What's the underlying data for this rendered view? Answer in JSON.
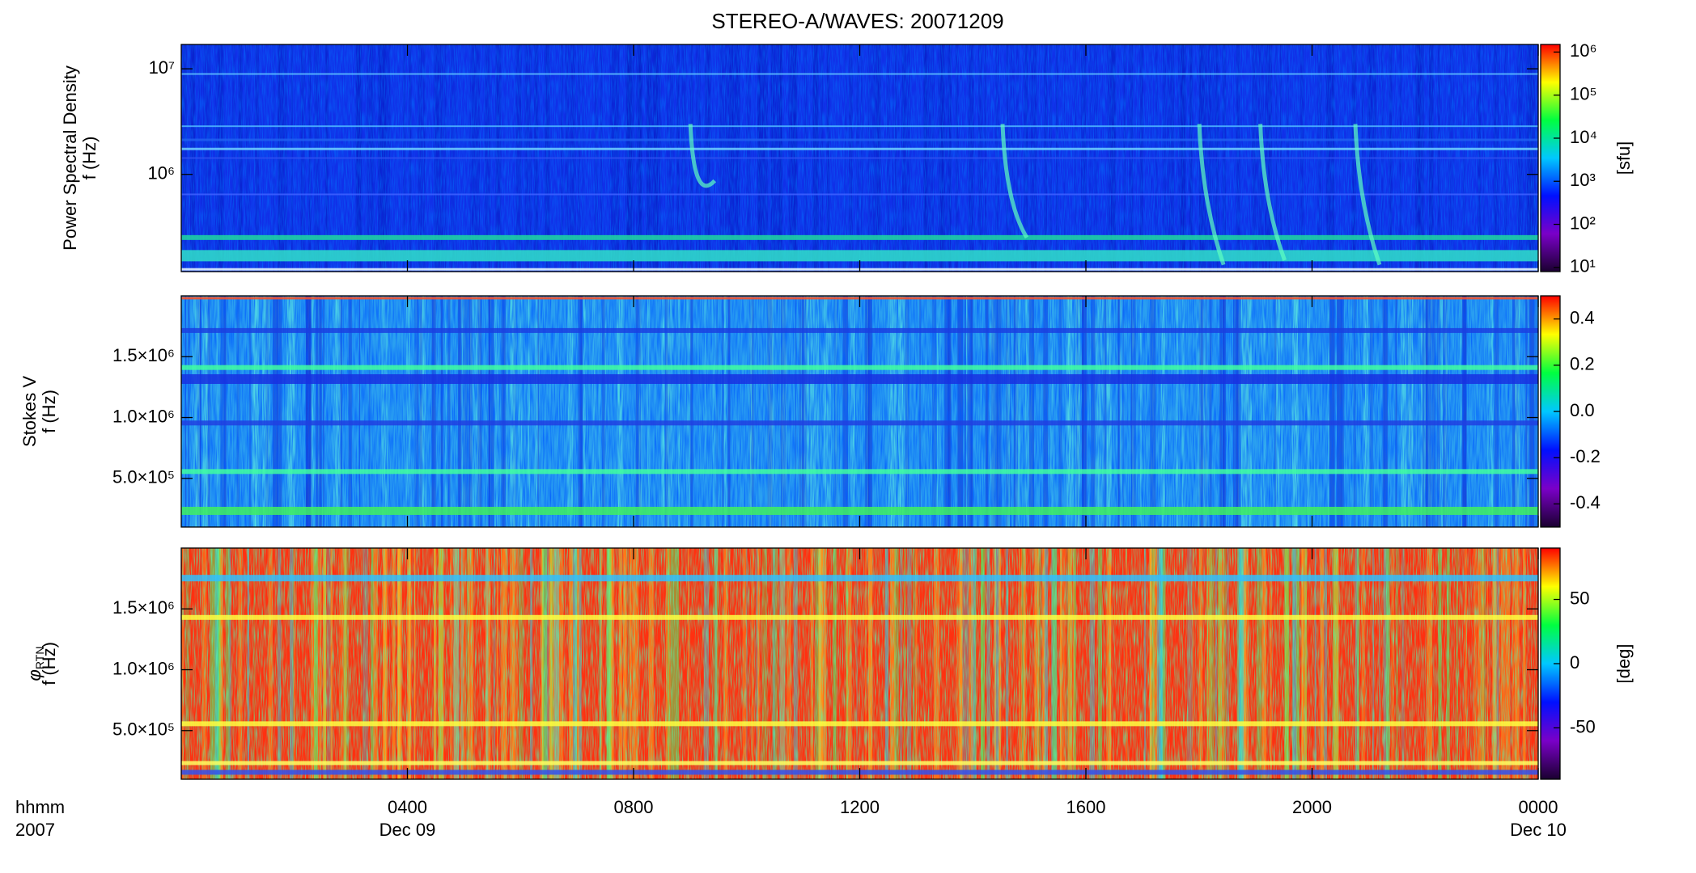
{
  "title": "STEREO-A/WAVES: 20071209",
  "x_axis": {
    "labels": [
      "hhmm",
      "2007"
    ]
  },
  "chart_data": [
    {
      "type": "spectrogram",
      "ylabel": [
        "Power Spectral Density",
        "f (Hz)"
      ],
      "ylog": true,
      "ylim": [
        120000,
        17000000
      ],
      "yticks": [
        {
          "value": 1000000,
          "label": "10⁶"
        },
        {
          "value": 10000000,
          "label": "10⁷"
        }
      ],
      "colorscale": [
        "#1a0030",
        "#7a00c8",
        "#0010ff",
        "#00c8ff",
        "#00ff40",
        "#ffff00",
        "#ff0000"
      ],
      "clog": true,
      "clim": [
        8,
        1500000
      ],
      "cticks": [
        {
          "value": 10,
          "label": "10¹"
        },
        {
          "value": 100,
          "label": "10²"
        },
        {
          "value": 1000,
          "label": "10³"
        },
        {
          "value": 10000,
          "label": "10⁴"
        },
        {
          "value": 100000,
          "label": "10⁵"
        },
        {
          "value": 1000000,
          "label": "10⁶"
        }
      ],
      "clabel": "[sfu]"
    },
    {
      "type": "spectrogram",
      "ylabel": [
        "Stokes V",
        "f (Hz)"
      ],
      "ylog": false,
      "ylim": [
        100000,
        2000000
      ],
      "yticks": [
        {
          "value": 500000,
          "label": "5.0×10⁵"
        },
        {
          "value": 1000000,
          "label": "1.0×10⁶"
        },
        {
          "value": 1500000,
          "label": "1.5×10⁶"
        }
      ],
      "colorscale": [
        "#1a0030",
        "#7a00c8",
        "#0010ff",
        "#00c8ff",
        "#00ff40",
        "#ffff00",
        "#ff0000"
      ],
      "clog": false,
      "clim": [
        -0.5,
        0.5
      ],
      "cticks": [
        -0.4,
        -0.2,
        {
          "value": 0,
          "label": "0.0"
        },
        0.2,
        0.4
      ]
    },
    {
      "type": "spectrogram",
      "ylabel_symbol": "φ",
      "ylabel_subscript": "RTN",
      "ylabel": [
        "f (Hz)"
      ],
      "ylog": false,
      "ylim": [
        100000,
        2000000
      ],
      "yticks": [
        {
          "value": 500000,
          "label": "5.0×10⁵"
        },
        {
          "value": 1000000,
          "label": "1.0×10⁶"
        },
        {
          "value": 1500000,
          "label": "1.5×10⁶"
        }
      ],
      "colorscale": [
        "#1a0030",
        "#7a00c8",
        "#0010ff",
        "#00c8ff",
        "#00ff40",
        "#ffff00",
        "#ff0000"
      ],
      "clog": false,
      "clim": [
        -90,
        90
      ],
      "cticks": [
        -50,
        0,
        50
      ],
      "clabel": "[deg]",
      "xlim": [
        0,
        24
      ],
      "xticks": [
        {
          "value": 4,
          "label": "0400"
        },
        {
          "value": 8,
          "label": "0800"
        },
        {
          "value": 12,
          "label": "1200"
        },
        {
          "value": 16,
          "label": "1600"
        },
        {
          "value": 20,
          "label": "2000"
        },
        {
          "value": 24,
          "label": "0000"
        }
      ],
      "xtick_dates": [
        {
          "value": 4,
          "label": "Dec 09"
        },
        {
          "value": 24,
          "label": "Dec 10"
        }
      ]
    }
  ]
}
